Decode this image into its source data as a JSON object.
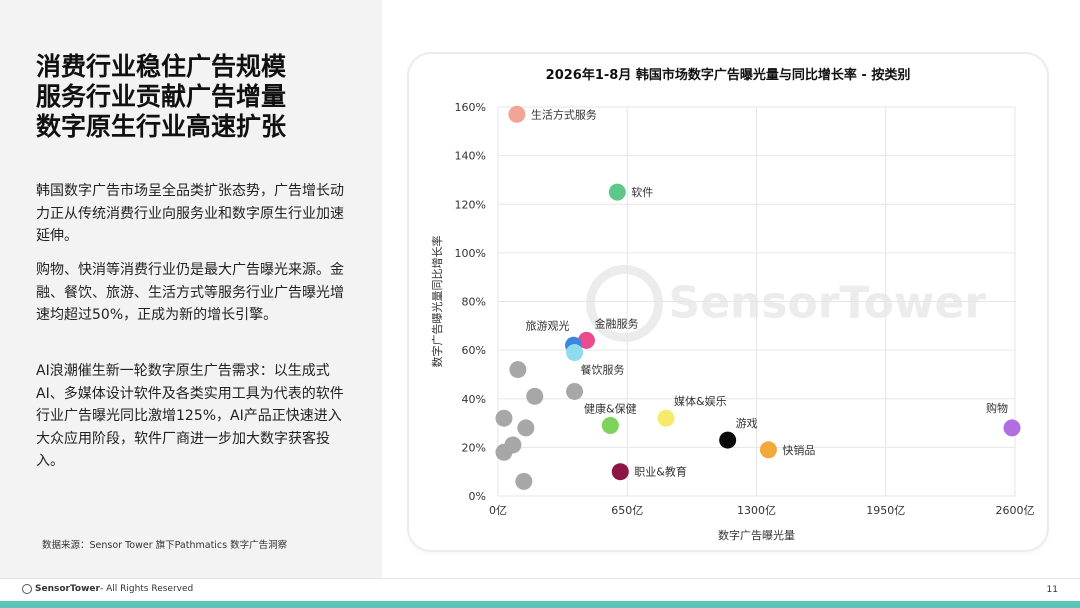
{
  "left": {
    "headline": [
      "消费行业稳住广告规模",
      "服务行业贡献广告增量",
      "数字原生行业高速扩张"
    ],
    "paragraphs": [
      "韩国数字广告市场呈全品类扩张态势，广告增长动力正从传统消费行业向服务业和数字原生行业加速延伸。",
      "购物、快消等消费行业仍是最大广告曝光来源。金融、餐饮、旅游、生活方式等服务行业广告曝光增速均超过50%，正成为新的增长引擎。",
      "AI浪潮催生新一轮数字原生广告需求：以生成式AI、多媒体设计软件及各类实用工具为代表的软件行业广告曝光同比激增125%，AI产品正快速进入大众应用阶段，软件厂商进一步加大数字获客投入。"
    ],
    "source": "数据来源：Sensor Tower 旗下Pathmatics 数字广告洞察"
  },
  "footer": {
    "brand": "SensorTower",
    "rights": " - All Rights Reserved",
    "page": "11"
  },
  "chart_data": {
    "type": "scatter",
    "title": "2026年1-8月 韩国市场数字广告曝光量与同比增长率 - 按类别",
    "xlabel": "数字广告曝光量",
    "ylabel": "数字广告曝光量同比增长率",
    "xlim": [
      0,
      2600
    ],
    "ylim": [
      0,
      160
    ],
    "xticks": [
      0,
      650,
      1300,
      1950,
      2600
    ],
    "xtick_labels": [
      "0亿",
      "650亿",
      "1300亿",
      "1950亿",
      "2600亿"
    ],
    "yticks": [
      0,
      20,
      40,
      60,
      80,
      100,
      120,
      140,
      160
    ],
    "ytick_labels": [
      "0%",
      "20%",
      "40%",
      "60%",
      "80%",
      "100%",
      "120%",
      "140%",
      "160%"
    ],
    "grid": true,
    "watermark": "SensorTower",
    "points": [
      {
        "label": "生活方式服务",
        "x": 95,
        "y": 157,
        "color": "#f0a596",
        "label_pos": "right"
      },
      {
        "label": "软件",
        "x": 600,
        "y": 125,
        "color": "#5cc98a",
        "label_pos": "right"
      },
      {
        "label": "金融服务",
        "x": 445,
        "y": 64,
        "color": "#e94c8e",
        "label_pos": "above-right"
      },
      {
        "label": "旅游观光",
        "x": 380,
        "y": 62,
        "color": "#3d86e0",
        "label_pos": "above-left"
      },
      {
        "label": "餐饮服务",
        "x": 385,
        "y": 59,
        "color": "#8fdcef",
        "label_pos": "below-right"
      },
      {
        "label": "健康&保健",
        "x": 565,
        "y": 29,
        "color": "#7ed35c",
        "label_pos": "above"
      },
      {
        "label": "媒体&娱乐",
        "x": 845,
        "y": 32,
        "color": "#f7ea6a",
        "label_pos": "above-right"
      },
      {
        "label": "游戏",
        "x": 1155,
        "y": 23,
        "color": "#0a0a0a",
        "label_pos": "above-right"
      },
      {
        "label": "快销品",
        "x": 1360,
        "y": 19,
        "color": "#f3a93a",
        "label_pos": "right"
      },
      {
        "label": "职业&教育",
        "x": 615,
        "y": 10,
        "color": "#8c1546",
        "label_pos": "right"
      },
      {
        "label": "购物",
        "x": 2585,
        "y": 28,
        "color": "#b16ee0",
        "label_pos": "above-left"
      },
      {
        "label": "",
        "x": 100,
        "y": 52,
        "color": "#a7a7a7",
        "label_pos": "none"
      },
      {
        "label": "",
        "x": 185,
        "y": 41,
        "color": "#a7a7a7",
        "label_pos": "none"
      },
      {
        "label": "",
        "x": 385,
        "y": 43,
        "color": "#a7a7a7",
        "label_pos": "none"
      },
      {
        "label": "",
        "x": 30,
        "y": 32,
        "color": "#a7a7a7",
        "label_pos": "none"
      },
      {
        "label": "",
        "x": 140,
        "y": 28,
        "color": "#a7a7a7",
        "label_pos": "none"
      },
      {
        "label": "",
        "x": 75,
        "y": 21,
        "color": "#a7a7a7",
        "label_pos": "none"
      },
      {
        "label": "",
        "x": 30,
        "y": 18,
        "color": "#a7a7a7",
        "label_pos": "none"
      },
      {
        "label": "",
        "x": 130,
        "y": 6,
        "color": "#a7a7a7",
        "label_pos": "none"
      }
    ]
  }
}
